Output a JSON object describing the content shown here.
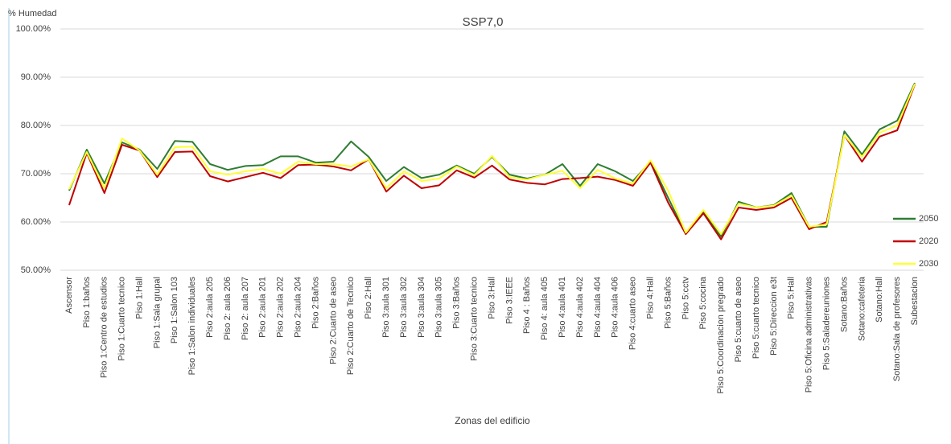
{
  "chart_data": {
    "type": "line",
    "title": "SSP7,0",
    "y_label": "% Humedad",
    "x_label": "Zonas del edificio",
    "categories": [
      "Ascensor",
      "Piso 1:baños",
      "Piso 1:Centro de estudios",
      "Piso 1:Cuarto tecnico",
      "Piso 1:Hall",
      "Piso 1:Sala grupal",
      "Piso 1:Salon 103",
      "Piso 1:Salon individuales",
      "Piso 2:aula 205",
      "Piso 2: aula 206",
      "Piso 2: aula 207",
      "Piso 2:aula 201",
      "Piso 2:aula 202",
      "Piso 2:aula 204",
      "Piso 2:Baños",
      "Piso 2:Cuarto de aseo",
      "Piso 2:Cuarto de Tecnico",
      "Piso 2:Hall",
      "Piso 3:aula 301",
      "Piso 3:aula 302",
      "Piso 3:aula 304",
      "Piso 3:aula 305",
      "Piso 3:Baños",
      "Piso 3:Cuarto tecnico",
      "Piso 3:Hall",
      "Piso 3:IEEE",
      "Piso 4 : Baños",
      "Piso 4: aula 405",
      "Piso 4:aula 401",
      "Piso 4:aula 402",
      "Piso 4:aula 404",
      "Piso 4:aula 406",
      "Piso 4:cuarto aseo",
      "Piso 4:Hall",
      "Piso 5:Baños",
      "Piso 5:cctv",
      "Piso 5:cocina",
      "Piso 5:Coordinacion pregrado",
      "Piso 5:cuarto de aseo",
      "Piso 5:cuarto tecnico",
      "Piso 5:Direccion e3t",
      "Piso 5:Hall",
      "Piso 5:Oficina administrativas",
      "Piso 5:Saladereuniones",
      "Sotano:Baños",
      "Sotano:cafeteria",
      "Sotano:Hall",
      "Sotano:Sala de profesores",
      "Subestacion"
    ],
    "series": [
      {
        "name": "2050",
        "color": "#2e7d32",
        "values": [
          66.5,
          75,
          68,
          76.5,
          75,
          71,
          76.8,
          76.6,
          72,
          70.8,
          71.6,
          71.8,
          73.6,
          73.6,
          72.3,
          72.5,
          76.7,
          73.5,
          68.5,
          71.4,
          69.1,
          69.8,
          71.7,
          70,
          73.5,
          69.8,
          69,
          69.8,
          72,
          67.5,
          72,
          70.5,
          68.5,
          72.5,
          65,
          57.5,
          62,
          57,
          64.2,
          63,
          63.5,
          66,
          59,
          59,
          78.8,
          74,
          79.2,
          81,
          88.8
        ]
      },
      {
        "name": "2020",
        "color": "#c00000",
        "values": [
          63.5,
          74.3,
          66,
          76,
          74.8,
          69.3,
          74.5,
          74.6,
          69.5,
          68.4,
          69.3,
          70.2,
          69.1,
          71.8,
          71.9,
          71.5,
          70.7,
          73,
          66.3,
          69.6,
          67,
          67.6,
          70.7,
          69.2,
          71.7,
          68.8,
          68.1,
          67.8,
          68.9,
          69.1,
          69.4,
          68.7,
          67.5,
          72.3,
          64,
          57.5,
          61.8,
          56.4,
          63,
          62.5,
          63,
          65,
          58.5,
          60,
          78,
          72.5,
          77.7,
          79,
          88.5
        ]
      },
      {
        "name": "2030",
        "color": "#ffff33",
        "values": [
          66.8,
          74.5,
          67,
          77.3,
          74.8,
          69.8,
          75.5,
          75.6,
          70.5,
          69.8,
          70.5,
          71,
          70,
          72.5,
          72,
          72,
          71.5,
          73,
          67,
          70.5,
          68.5,
          69,
          71.5,
          69.7,
          73.7,
          69.3,
          68.8,
          69.8,
          70.6,
          67,
          70.8,
          69,
          68,
          72.8,
          66.5,
          57.8,
          62.5,
          57.5,
          63.8,
          63,
          63.4,
          65.5,
          59,
          59.5,
          78,
          73.5,
          78.5,
          80,
          88.6
        ]
      }
    ],
    "ylim": [
      50,
      100
    ],
    "yticks": [
      {
        "value": 50,
        "label": "50.00%"
      },
      {
        "value": 60,
        "label": "60.00%"
      },
      {
        "value": 70,
        "label": "70.00%"
      },
      {
        "value": 80,
        "label": "80.00%"
      },
      {
        "value": 90,
        "label": "90.00%"
      },
      {
        "value": 100,
        "label": "100.00%"
      }
    ],
    "grid": true,
    "legend": "right"
  }
}
